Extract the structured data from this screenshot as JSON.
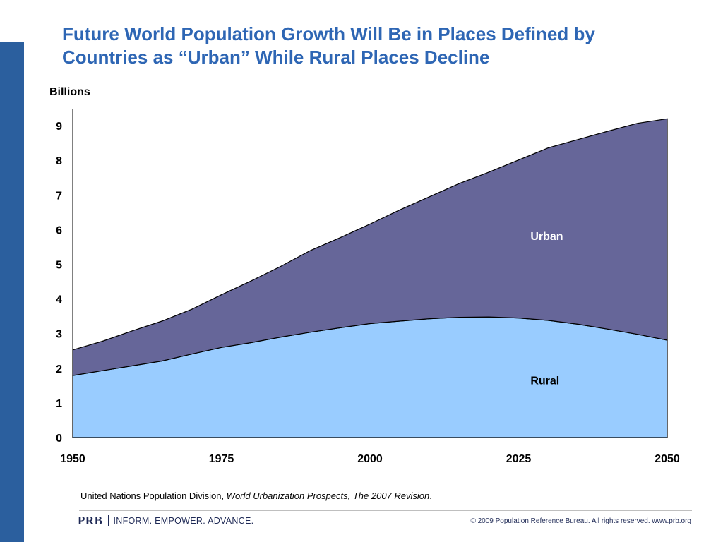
{
  "slide": {
    "title_line1": "Future World Population Growth Will Be in Places Defined by",
    "title_line2": "Countries as “Urban” While Rural Places Decline",
    "accent_color": "#2b5f9e",
    "title_color": "#2e66b4"
  },
  "source": {
    "prefix": "United Nations Population Division, ",
    "publication": "World Urbanization Prospects, The 2007 Revision",
    "suffix": "."
  },
  "footer": {
    "logo": "PRB",
    "tagline": "INFORM. EMPOWER. ADVANCE.",
    "copyright": "© 2009 Population Reference Bureau. All rights reserved. www.prb.org"
  },
  "chart_data": {
    "type": "area",
    "stacked": true,
    "title": "",
    "ylabel": "Billions",
    "xlabel": "",
    "xlim": [
      1950,
      2050
    ],
    "ylim": [
      0,
      9
    ],
    "x_ticks": [
      "1950",
      "1975",
      "2000",
      "2025",
      "2050"
    ],
    "y_ticks": [
      "0",
      "1",
      "2",
      "3",
      "4",
      "5",
      "6",
      "7",
      "8",
      "9"
    ],
    "grid": false,
    "x": [
      1950,
      1955,
      1960,
      1965,
      1970,
      1975,
      1980,
      1985,
      1990,
      1995,
      2000,
      2005,
      2010,
      2015,
      2020,
      2025,
      2030,
      2035,
      2040,
      2045,
      2050
    ],
    "series": [
      {
        "name": "Rural",
        "color": "#99ccff",
        "values": [
          1.79,
          1.93,
          2.07,
          2.21,
          2.41,
          2.6,
          2.74,
          2.9,
          3.04,
          3.17,
          3.29,
          3.36,
          3.43,
          3.47,
          3.48,
          3.45,
          3.38,
          3.27,
          3.13,
          2.98,
          2.81
        ]
      },
      {
        "name": "Urban",
        "color": "#666699",
        "values": [
          0.74,
          0.85,
          1.01,
          1.15,
          1.29,
          1.52,
          1.78,
          2.04,
          2.36,
          2.6,
          2.87,
          3.21,
          3.52,
          3.86,
          4.18,
          4.56,
          4.98,
          5.33,
          5.71,
          6.09,
          6.39
        ]
      }
    ]
  }
}
